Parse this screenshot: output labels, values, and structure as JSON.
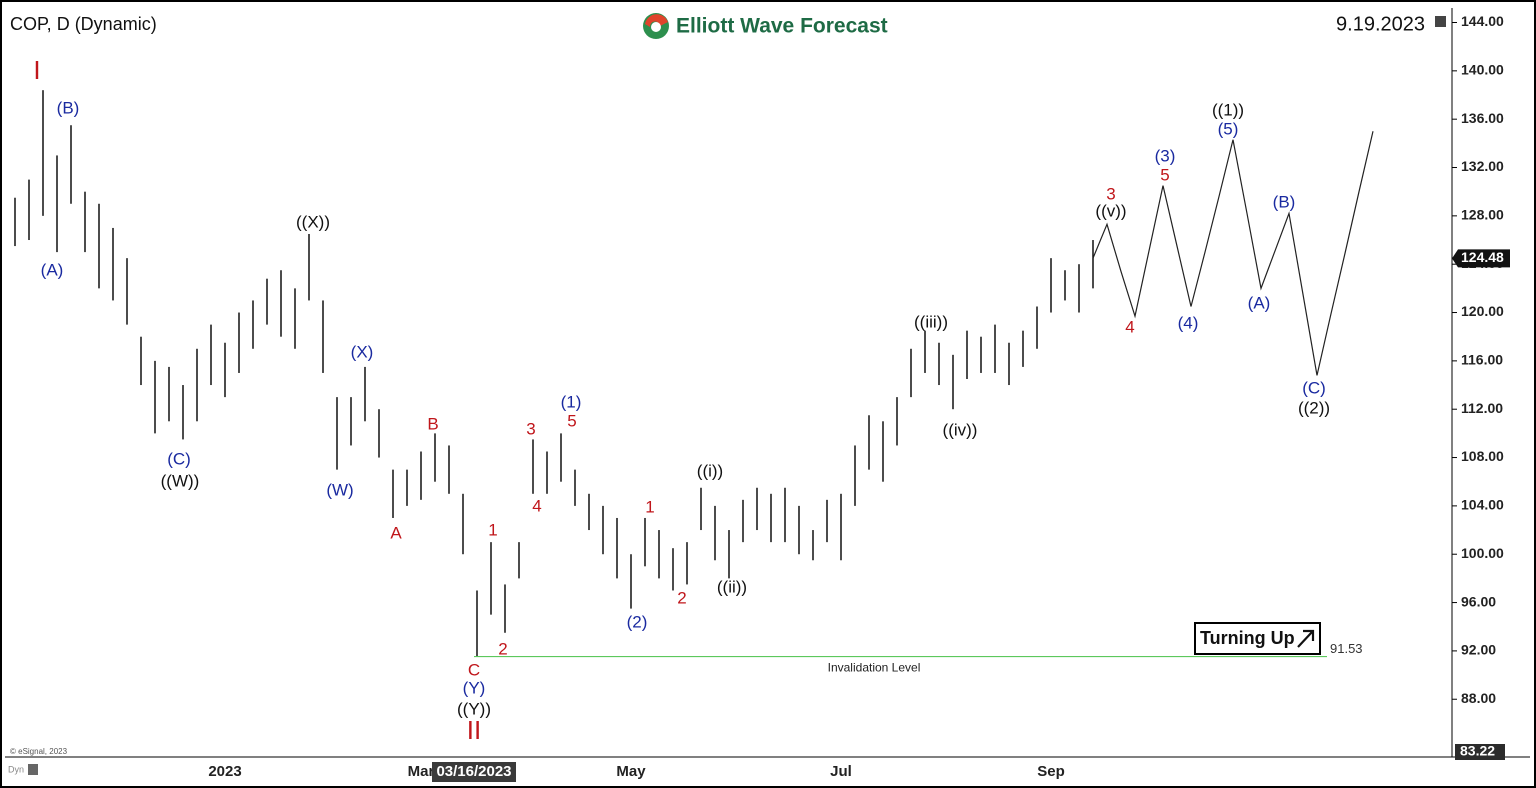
{
  "chart_data": {
    "type": "ohlc",
    "symbol_title": "COP, D (Dynamic)",
    "brand": "Elliott Wave Forecast",
    "date_stamp": "9.19.2023",
    "copyright": "© eSignal, 2023",
    "crosshair_date": "03/16/2023",
    "signal": "Turning Up",
    "current_price": 124.48,
    "invalidation": {
      "value": 91.53,
      "label": "Invalidation Level",
      "color": "#5cc85c"
    },
    "ylim": [
      83.22,
      145.2
    ],
    "yticks": [
      {
        "value": 88,
        "label": "88.00"
      },
      {
        "value": 92,
        "label": "92.00"
      },
      {
        "value": 96,
        "label": "96.00"
      },
      {
        "value": 100,
        "label": "100.00"
      },
      {
        "value": 104,
        "label": "104.00"
      },
      {
        "value": 108,
        "label": "108.00"
      },
      {
        "value": 112,
        "label": "112.00"
      },
      {
        "value": 116,
        "label": "116.00"
      },
      {
        "value": 120,
        "label": "120.00"
      },
      {
        "value": 124,
        "label": "124.00"
      },
      {
        "value": 128,
        "label": "128.00"
      },
      {
        "value": 132,
        "label": "132.00"
      },
      {
        "value": 136,
        "label": "136.00"
      },
      {
        "value": 140,
        "label": "140.00"
      },
      {
        "value": 144,
        "label": "144.00"
      }
    ],
    "categories": [
      null,
      null,
      null,
      null,
      null,
      null,
      null,
      null,
      null,
      null,
      null,
      null,
      null,
      null,
      null,
      "2023",
      null,
      null,
      null,
      null,
      null,
      null,
      null,
      null,
      null,
      null,
      null,
      null,
      null,
      "Mar",
      null,
      null,
      null,
      null,
      null,
      null,
      null,
      null,
      null,
      null,
      null,
      null,
      null,
      null,
      "May",
      null,
      null,
      null,
      null,
      null,
      null,
      null,
      null,
      null,
      null,
      null,
      null,
      null,
      null,
      "Jul",
      null,
      null,
      null,
      null,
      null,
      null,
      null,
      null,
      null,
      null,
      null,
      null,
      null,
      null,
      "Sep",
      null,
      null,
      null,
      null,
      null,
      null,
      null,
      null,
      null,
      null,
      null,
      null,
      null,
      null,
      null,
      null,
      null,
      null,
      null,
      null,
      null,
      null,
      null,
      null,
      null,
      null,
      null,
      null
    ],
    "high": [
      129.5,
      131,
      138.4,
      133,
      135.5,
      130,
      129,
      127,
      124.5,
      118,
      116,
      115.5,
      114,
      117,
      119,
      117.5,
      120,
      121,
      122.8,
      123.5,
      122,
      126.5,
      121,
      113,
      113,
      115.5,
      112,
      107,
      107,
      108.5,
      110,
      109,
      105,
      97,
      101,
      97.5,
      101,
      109.5,
      108.5,
      110,
      107,
      105,
      104,
      103,
      100,
      103,
      102,
      100.5,
      101,
      105.5,
      104,
      102,
      104.5,
      105.5,
      105,
      105.5,
      104,
      102,
      104.5,
      105,
      109,
      111.5,
      111,
      113,
      117,
      118.5,
      117.5,
      116.5,
      118.5,
      118,
      119,
      117.5,
      118.5,
      120.5,
      124.5,
      123.5,
      124,
      126,
      null,
      null,
      null,
      null,
      null,
      null,
      null,
      null,
      null,
      null,
      null,
      null,
      null,
      null,
      null,
      null,
      null,
      null,
      null,
      null,
      null,
      null,
      null,
      null,
      null
    ],
    "low": [
      125.5,
      126,
      128,
      125,
      129,
      125,
      122,
      121,
      119,
      114,
      110,
      111,
      109.5,
      111,
      114,
      113,
      115,
      117,
      119,
      118,
      117,
      121,
      115,
      107,
      109,
      111,
      108,
      103,
      104,
      104.5,
      106,
      105,
      100,
      91.5,
      95,
      93.5,
      98,
      105,
      105,
      106,
      104,
      102,
      100,
      98,
      95.5,
      99,
      98,
      97,
      97.5,
      102,
      99.5,
      98,
      101,
      102,
      101,
      101,
      100,
      99.5,
      101,
      99.5,
      104,
      107,
      106,
      109,
      113,
      115,
      114,
      112,
      114.5,
      115,
      115,
      114,
      115.5,
      117,
      120,
      121,
      120,
      122,
      null,
      null,
      null,
      null,
      null,
      null,
      null,
      null,
      null,
      null,
      null,
      null,
      null,
      null,
      null,
      null,
      null,
      null,
      null,
      null,
      null,
      null,
      null,
      null,
      null
    ],
    "projection": [
      null,
      null,
      null,
      null,
      null,
      null,
      null,
      null,
      null,
      null,
      null,
      null,
      null,
      null,
      null,
      null,
      null,
      null,
      null,
      null,
      null,
      null,
      null,
      null,
      null,
      null,
      null,
      null,
      null,
      null,
      null,
      null,
      null,
      null,
      null,
      null,
      null,
      null,
      null,
      null,
      null,
      null,
      null,
      null,
      null,
      null,
      null,
      null,
      null,
      null,
      null,
      null,
      null,
      null,
      null,
      null,
      null,
      null,
      null,
      null,
      null,
      null,
      null,
      null,
      null,
      null,
      null,
      null,
      null,
      null,
      null,
      null,
      null,
      null,
      null,
      null,
      null,
      124.5,
      127.3,
      123.4,
      119.7,
      125.1,
      130.5,
      125.5,
      120.5,
      125,
      129.6,
      134.3,
      128.2,
      122,
      125.1,
      128.2,
      121.5,
      114.8,
      119.9,
      124.9,
      130,
      135,
      null,
      null,
      null,
      null,
      null
    ],
    "wave_labels": [
      {
        "text": "I",
        "color": "#c0161b"
      },
      {
        "text": "(B)",
        "color": "#1a2aa0"
      },
      {
        "text": "(A)",
        "color": "#1a2aa0"
      },
      {
        "text": "((X))",
        "color": "#111111"
      },
      {
        "text": "(X)",
        "color": "#1a2aa0"
      },
      {
        "text": "(C)",
        "color": "#1a2aa0"
      },
      {
        "text": "((W))",
        "color": "#111111"
      },
      {
        "text": "(W)",
        "color": "#1a2aa0"
      },
      {
        "text": "B",
        "color": "#c0161b"
      },
      {
        "text": "A",
        "color": "#c0161b"
      },
      {
        "text": "C",
        "color": "#c0161b"
      },
      {
        "text": "(Y)",
        "color": "#1a2aa0"
      },
      {
        "text": "((Y))",
        "color": "#111111"
      },
      {
        "text": "II",
        "color": "#c0161b"
      },
      {
        "text": "1",
        "color": "#c0161b"
      },
      {
        "text": "2",
        "color": "#c0161b"
      },
      {
        "text": "3",
        "color": "#c0161b"
      },
      {
        "text": "4",
        "color": "#c0161b"
      },
      {
        "text": "(1)",
        "color": "#1a2aa0"
      },
      {
        "text": "5",
        "color": "#c0161b"
      },
      {
        "text": "(2)",
        "color": "#1a2aa0"
      },
      {
        "text": "1",
        "color": "#c0161b"
      },
      {
        "text": "2",
        "color": "#c0161b"
      },
      {
        "text": "((i))",
        "color": "#111111"
      },
      {
        "text": "((ii))",
        "color": "#111111"
      },
      {
        "text": "((iii))",
        "color": "#111111"
      },
      {
        "text": "((iv))",
        "color": "#111111"
      },
      {
        "text": "3",
        "color": "#c0161b"
      },
      {
        "text": "((v))",
        "color": "#111111"
      },
      {
        "text": "4",
        "color": "#c0161b"
      },
      {
        "text": "(3)",
        "color": "#1a2aa0"
      },
      {
        "text": "5",
        "color": "#c0161b"
      },
      {
        "text": "(4)",
        "color": "#1a2aa0"
      },
      {
        "text": "((1))",
        "color": "#111111"
      },
      {
        "text": "(5)",
        "color": "#1a2aa0"
      },
      {
        "text": "(A)",
        "color": "#1a2aa0"
      },
      {
        "text": "(B)",
        "color": "#1a2aa0"
      },
      {
        "text": "(C)",
        "color": "#1a2aa0"
      },
      {
        "text": "((2))",
        "color": "#111111"
      }
    ]
  }
}
